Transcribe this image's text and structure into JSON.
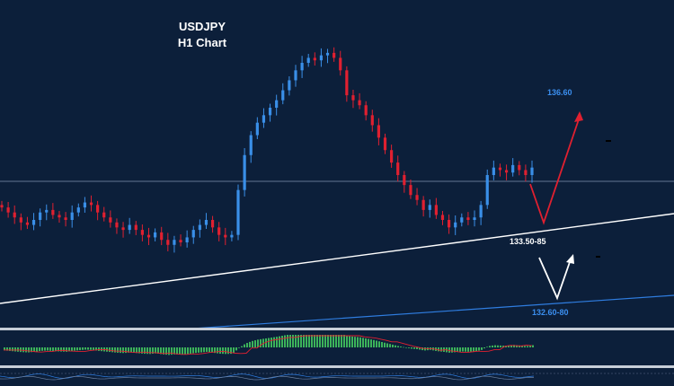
{
  "title": "USDJPY",
  "subtitle": "H1 Chart",
  "annotations": {
    "target_high": "136.60",
    "support_mid": "133.50-85",
    "support_low": "132.60-80"
  },
  "colors": {
    "background": "#0c1f3a",
    "bull": "#3a8fe8",
    "bear": "#e02030",
    "trend_white": "#ffffff",
    "trend_blue": "#2f7de0",
    "target_text": "#3b8ff0",
    "osc_bull": "#3cb35a"
  },
  "chart_data": {
    "type": "line",
    "title": "USDJPY",
    "subtitle": "H1 Chart",
    "series": [
      {
        "values": [
          134.15,
          134.05,
          133.95,
          133.85,
          133.8,
          133.9,
          134.05,
          134.1,
          134.0,
          133.95,
          133.9,
          134.05,
          134.15,
          134.25,
          134.2,
          134.05,
          133.95,
          133.85,
          133.75,
          133.7,
          133.8,
          133.7,
          133.6,
          133.55,
          133.65,
          133.5,
          133.4,
          133.5,
          133.45,
          133.55,
          133.7,
          133.8,
          133.9,
          133.75,
          133.6,
          133.55,
          133.6,
          134.5,
          135.2,
          135.6,
          135.85,
          136.0,
          136.15,
          136.3,
          136.5,
          136.7,
          136.9,
          137.05,
          137.15,
          137.1,
          137.2,
          137.25,
          137.15,
          136.9,
          136.4,
          136.3,
          136.2,
          136.0,
          135.8,
          135.55,
          135.3,
          135.05,
          134.8,
          134.6,
          134.4,
          134.3,
          134.1,
          134.2,
          134.0,
          133.9,
          133.75,
          133.85,
          133.95,
          133.9,
          133.95,
          134.2,
          134.8,
          134.95,
          134.9,
          134.85,
          135.0,
          134.9,
          134.8,
          134.95
        ]
      }
    ],
    "annotations": [
      "136.60",
      "133.50-85",
      "132.60-80"
    ],
    "grid": false
  }
}
